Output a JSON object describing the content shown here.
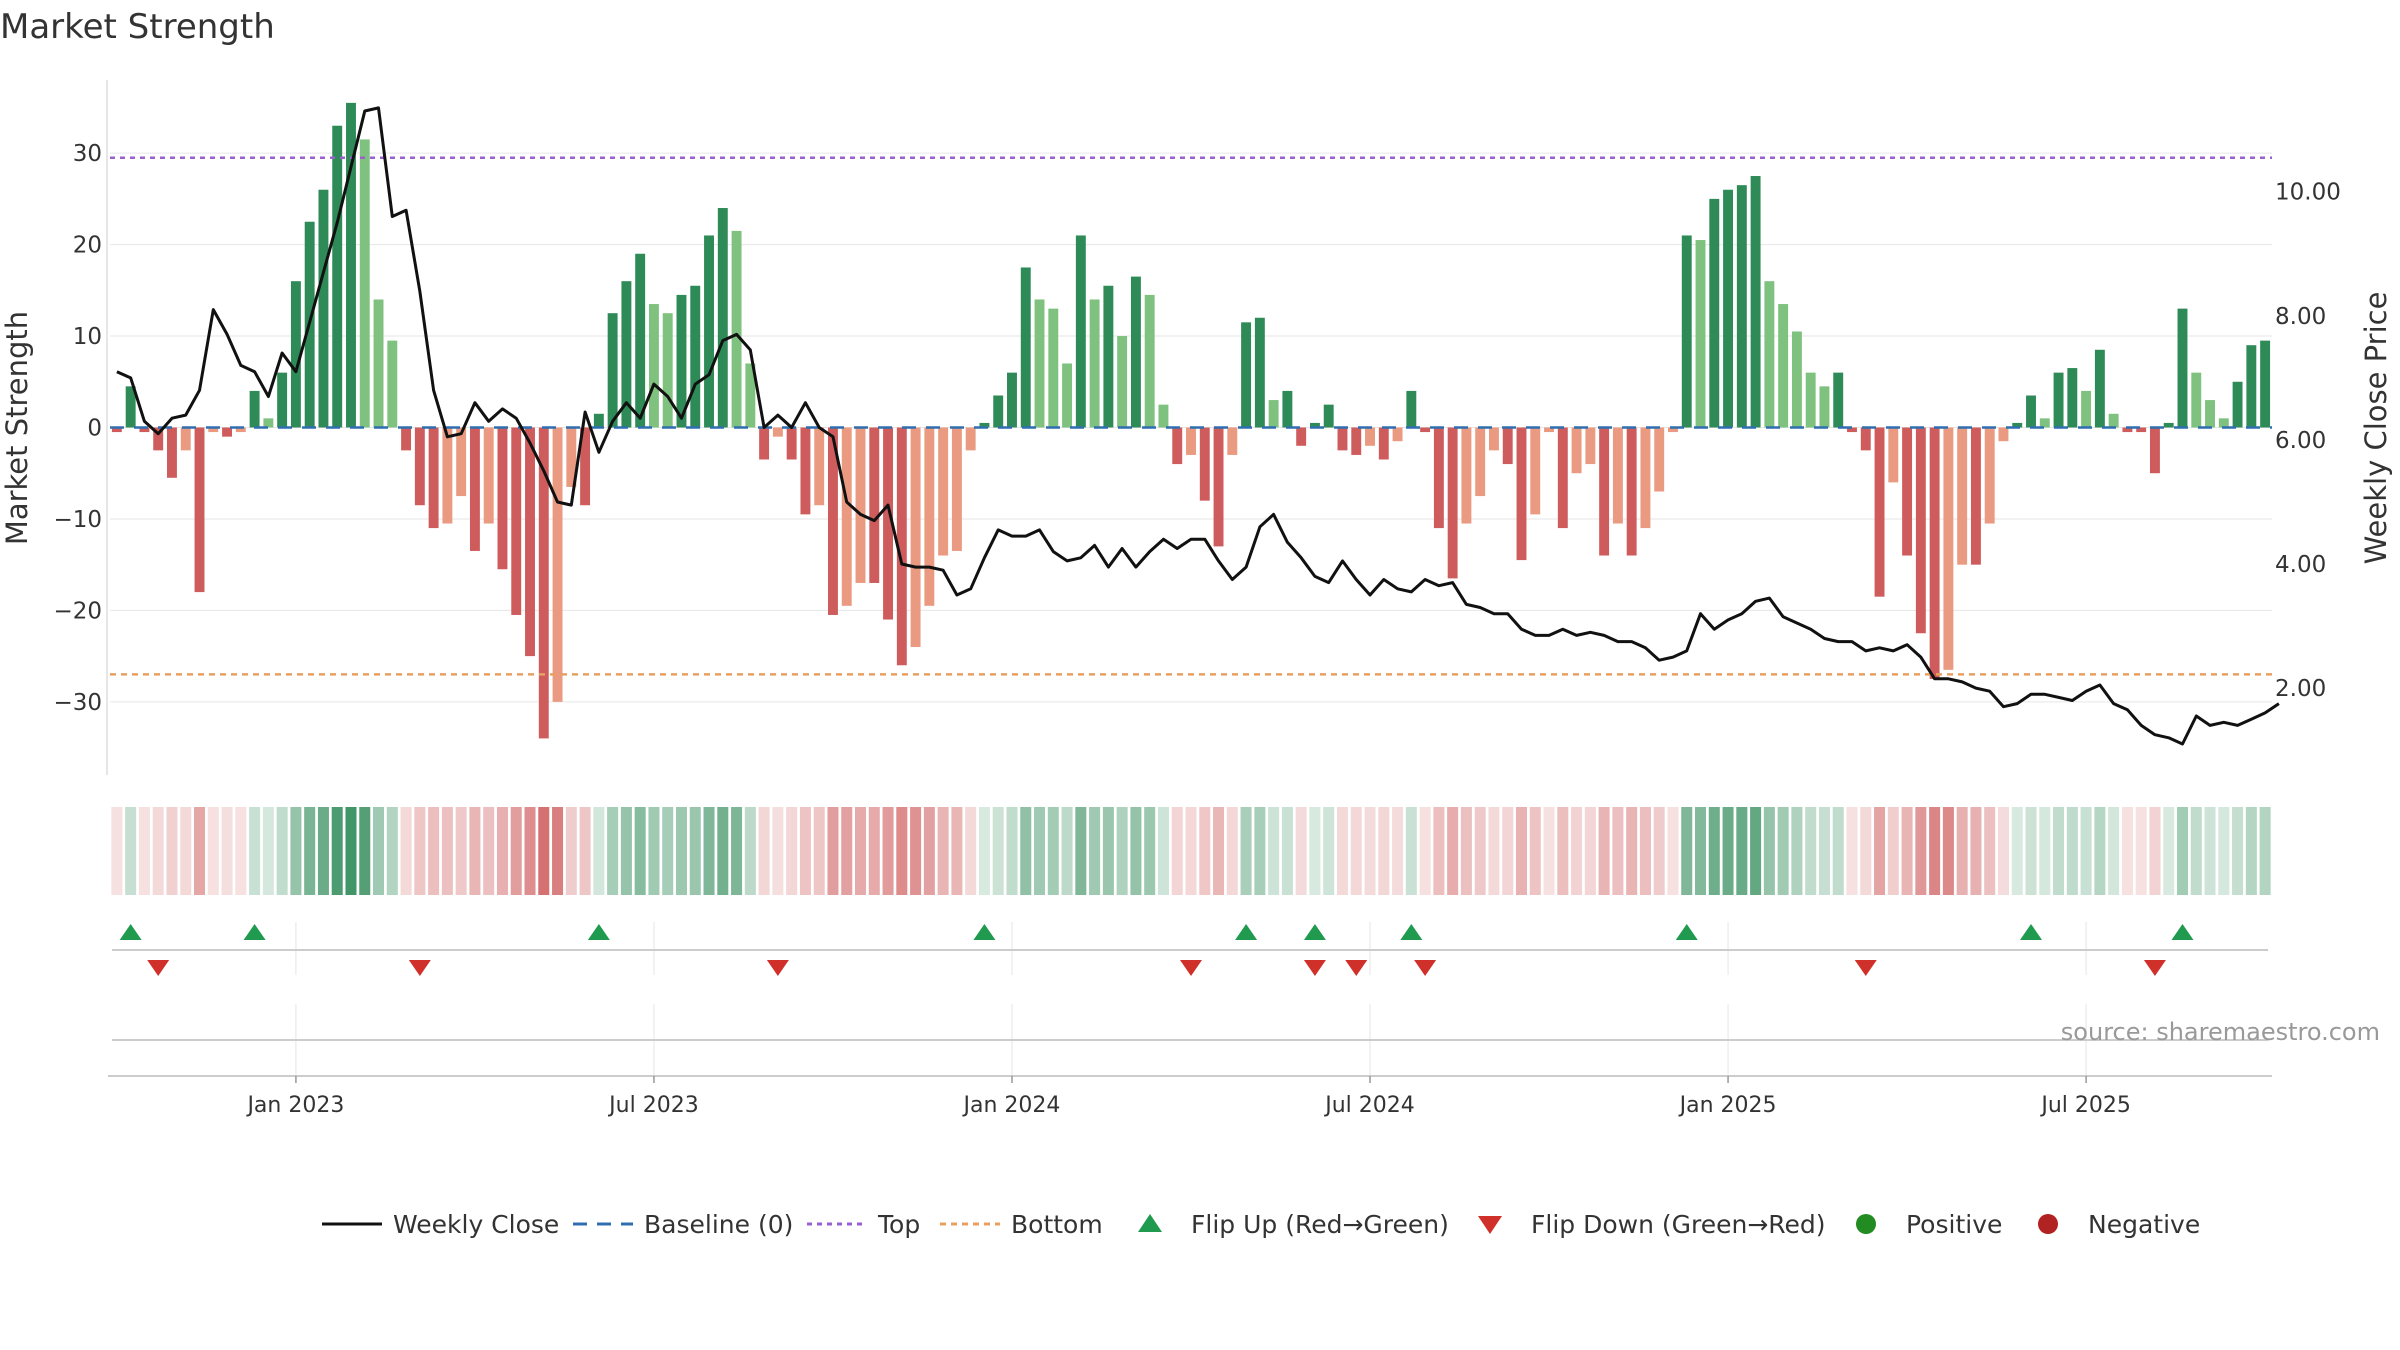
{
  "chart_data": {
    "type": "bar",
    "title": "Market Strength",
    "ylabel": "Market Strength",
    "y2label": "Weekly Close Price",
    "ylim": [
      -38,
      38
    ],
    "y2lim": [
      0.6,
      11.8
    ],
    "yticks": [
      30,
      20,
      10,
      0,
      -10,
      -20,
      -30
    ],
    "ytick_labels": [
      "30",
      "20",
      "10",
      "0",
      "−10",
      "−20",
      "−30"
    ],
    "y2ticks": [
      10,
      8,
      6,
      4,
      2
    ],
    "y2tick_labels": [
      "10.00",
      "8.00",
      "6.00",
      "4.00",
      "2.00"
    ],
    "top_line": 29.5,
    "bottom_line": -27,
    "baseline": 0,
    "x_ticks": [
      {
        "index": 13,
        "label": "Jan 2023"
      },
      {
        "index": 39,
        "label": "Jul 2023"
      },
      {
        "index": 65,
        "label": "Jan 2024"
      },
      {
        "index": 91,
        "label": "Jul 2024"
      },
      {
        "index": 117,
        "label": "Jan 2025"
      },
      {
        "index": 143,
        "label": "Jul 2025"
      }
    ],
    "source": "source: sharemaestro.com",
    "market_strength": [
      -0.5,
      4.5,
      -0.5,
      -2.5,
      -5.5,
      -2.5,
      -18,
      -0.5,
      -1,
      -0.5,
      4,
      1,
      6,
      16,
      22.5,
      26,
      33,
      35.5,
      31.5,
      14,
      9.5,
      -2.5,
      -8.5,
      -11,
      -10.5,
      -7.5,
      -13.5,
      -10.5,
      -15.5,
      -20.5,
      -25,
      -34,
      -30,
      -6.5,
      -8.5,
      1.5,
      12.5,
      16,
      19,
      13.5,
      12.5,
      14.5,
      15.5,
      21,
      24,
      21.5,
      7,
      -3.5,
      -1,
      -3.5,
      -9.5,
      -8.5,
      -20.5,
      -19.5,
      -17,
      -17,
      -21,
      -26,
      -24,
      -19.5,
      -14,
      -13.5,
      -2.5,
      0.5,
      3.5,
      6,
      17.5,
      14,
      13,
      7,
      21,
      14,
      15.5,
      10,
      16.5,
      14.5,
      2.5,
      -4,
      -3,
      -8,
      -13,
      -3,
      11.5,
      12,
      3,
      4,
      -2,
      0.5,
      2.5,
      -2.5,
      -3,
      -2,
      -3.5,
      -1.5,
      4,
      -0.5,
      -11,
      -16.5,
      -10.5,
      -7.5,
      -2.5,
      -4,
      -14.5,
      -9.5,
      -0.5,
      -11,
      -5,
      -4,
      -14,
      -10.5,
      -14,
      -11,
      -7,
      -0.5,
      21,
      20.5,
      25,
      26,
      26.5,
      27.5,
      16,
      13.5,
      10.5,
      6,
      4.5,
      6,
      -0.5,
      -2.5,
      -18.5,
      -6,
      -14,
      -22.5,
      -27.5,
      -26.5,
      -15,
      -15,
      -10.5,
      -1.5,
      0.5,
      3.5,
      1,
      6,
      6.5,
      4,
      8.5,
      1.5,
      -0.5,
      -0.5,
      -5,
      0.5,
      13,
      6,
      3,
      1,
      5,
      9,
      9.5
    ],
    "weekly_close": [
      7.1,
      7,
      6.3,
      6.1,
      6.35,
      6.4,
      6.8,
      8.1,
      7.7,
      7.2,
      7.1,
      6.7,
      7.4,
      7.1,
      7.9,
      8.7,
      9.5,
      10.4,
      11.3,
      11.35,
      9.6,
      9.7,
      8.4,
      6.8,
      6.05,
      6.1,
      6.6,
      6.3,
      6.5,
      6.35,
      5.95,
      5.5,
      5,
      4.95,
      6.45,
      5.8,
      6.3,
      6.6,
      6.35,
      6.9,
      6.7,
      6.35,
      6.9,
      7.05,
      7.6,
      7.7,
      7.45,
      6.2,
      6.4,
      6.2,
      6.6,
      6.2,
      6.05,
      5,
      4.8,
      4.7,
      4.95,
      4,
      3.95,
      3.95,
      3.9,
      3.5,
      3.6,
      4.1,
      4.55,
      4.45,
      4.45,
      4.55,
      4.2,
      4.05,
      4.1,
      4.3,
      3.95,
      4.25,
      3.95,
      4.2,
      4.4,
      4.25,
      4.4,
      4.4,
      4.05,
      3.75,
      3.95,
      4.6,
      4.8,
      4.35,
      4.1,
      3.8,
      3.7,
      4.05,
      3.75,
      3.5,
      3.75,
      3.6,
      3.55,
      3.75,
      3.65,
      3.7,
      3.35,
      3.3,
      3.2,
      3.2,
      2.95,
      2.85,
      2.85,
      2.95,
      2.85,
      2.9,
      2.85,
      2.75,
      2.75,
      2.65,
      2.45,
      2.5,
      2.6,
      3.2,
      2.95,
      3.1,
      3.2,
      3.4,
      3.45,
      3.15,
      3.05,
      2.95,
      2.8,
      2.75,
      2.75,
      2.6,
      2.65,
      2.6,
      2.7,
      2.5,
      2.15,
      2.15,
      2.1,
      2,
      1.95,
      1.7,
      1.75,
      1.9,
      1.9,
      1.85,
      1.8,
      1.95,
      2.05,
      1.75,
      1.65,
      1.4,
      1.25,
      1.2,
      1.1,
      1.55,
      1.4,
      1.45,
      1.4,
      1.5,
      1.6,
      1.75
    ],
    "flip_up_indices": [
      1,
      10,
      35,
      63,
      82,
      87,
      94,
      114,
      139,
      150
    ],
    "flip_down_indices": [
      3,
      22,
      48,
      78,
      87,
      90,
      95,
      127,
      148
    ],
    "legend": [
      {
        "key": "weekly_close",
        "label": "Weekly Close"
      },
      {
        "key": "baseline",
        "label": "Baseline (0)"
      },
      {
        "key": "top",
        "label": "Top"
      },
      {
        "key": "bottom",
        "label": "Bottom"
      },
      {
        "key": "flip_up",
        "label": "Flip Up (Red→Green)"
      },
      {
        "key": "flip_down",
        "label": "Flip Down (Green→Red)"
      },
      {
        "key": "positive",
        "label": "Positive"
      },
      {
        "key": "negative",
        "label": "Negative"
      }
    ],
    "colors": {
      "pos_strong": "#2e8a57",
      "pos_light": "#7fc17f",
      "neg_strong": "#cf5c5c",
      "neg_light": "#e99a80",
      "line": "#111111",
      "baseline": "#2f6fb0",
      "top": "#9a5fd0",
      "bottom": "#e8a060",
      "flip_up": "#1f9a4e",
      "flip_down": "#d0302a",
      "positive": "#228b22",
      "negative": "#b22222",
      "grid": "#e6e6e6",
      "text": "#333333"
    }
  }
}
